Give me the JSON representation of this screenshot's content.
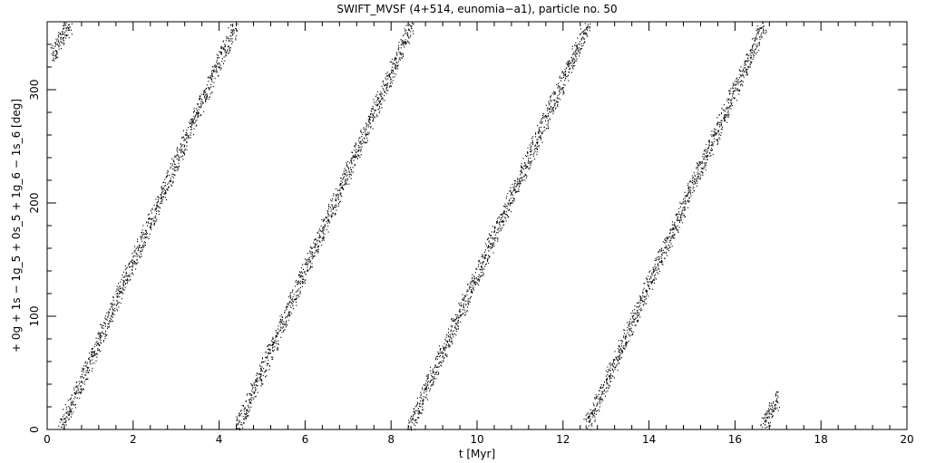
{
  "chart_data": {
    "type": "scatter",
    "title": "SWIFT_MVSF (4+514, eunomia−a1), particle no. 50",
    "xlabel": "t [Myr]",
    "ylabel": "+ 0g + 1s − 1g_5 + 0s_5 + 1g_6 − 1s_6 [deg]",
    "xlim": [
      0,
      20
    ],
    "ylim": [
      0,
      360
    ],
    "x_ticks": [
      0,
      2,
      4,
      6,
      8,
      10,
      12,
      14,
      16,
      18,
      20
    ],
    "y_ticks": [
      0,
      100,
      200,
      300
    ],
    "grid": false,
    "series": [
      {
        "segments": [
          {
            "x": [
              0.1,
              0.55
            ],
            "y": [
              330,
              360
            ]
          },
          {
            "x": [
              0.3,
              4.4
            ],
            "y": [
              0,
              360
            ]
          },
          {
            "x": [
              4.4,
              8.5
            ],
            "y": [
              0,
              360
            ]
          },
          {
            "x": [
              8.4,
              12.6
            ],
            "y": [
              0,
              360
            ]
          },
          {
            "x": [
              12.5,
              16.7
            ],
            "y": [
              0,
              360
            ]
          },
          {
            "x": [
              16.6,
              17.0
            ],
            "y": [
              0,
              28
            ]
          }
        ]
      }
    ]
  }
}
